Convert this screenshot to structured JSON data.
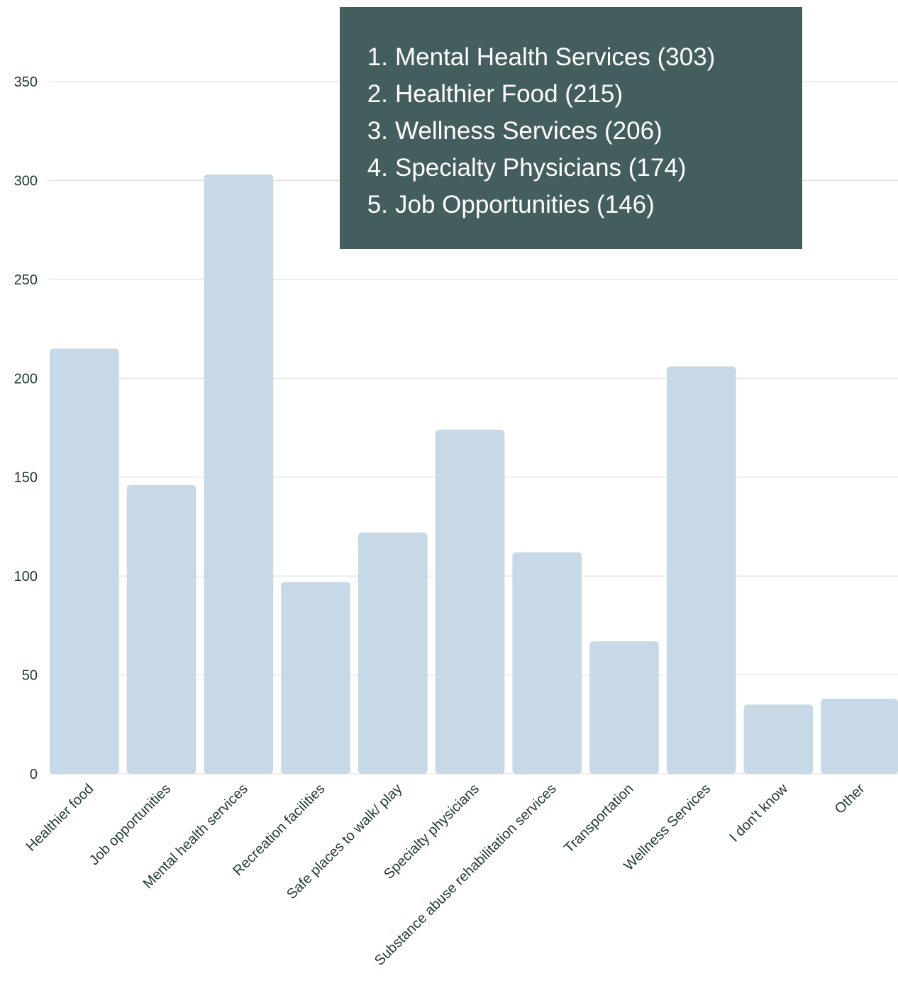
{
  "chart_data": {
    "type": "bar",
    "categories": [
      "Healthier food",
      "Job opportunities",
      "Mental health services",
      "Recreation facilities",
      "Safe places to walk/ play",
      "Specialty physicians",
      "Substance abuse rehabilitation services",
      "Transportation",
      "Wellness Services",
      "I don't know",
      "Other"
    ],
    "values": [
      215,
      146,
      303,
      97,
      122,
      174,
      112,
      67,
      206,
      35,
      38
    ],
    "ylim": [
      0,
      350
    ],
    "yticks": [
      0,
      50,
      100,
      150,
      200,
      250,
      300,
      350
    ],
    "grid": true,
    "bar_color": "#c7d9e6",
    "title": "",
    "xlabel": "",
    "ylabel": ""
  },
  "summary": {
    "background_color": "#445d5f",
    "items": [
      {
        "num": "1.",
        "text": "Mental Health Services (303)"
      },
      {
        "num": "2.",
        "text": "Healthier Food (215)"
      },
      {
        "num": "3.",
        "text": "Wellness Services (206)"
      },
      {
        "num": "4.",
        "text": "Specialty Physicians (174)"
      },
      {
        "num": "5.",
        "text": "Job Opportunities (146)"
      }
    ]
  }
}
